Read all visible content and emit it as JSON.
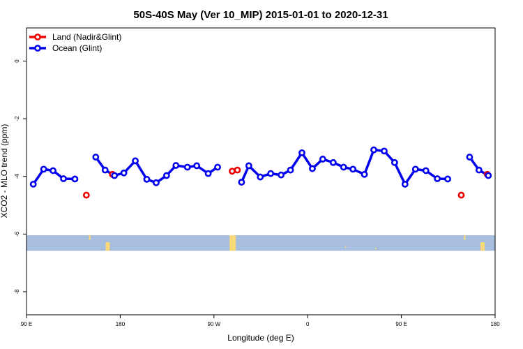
{
  "chart_data": {
    "type": "line",
    "title": "50S-40S May (Ver 10_MIP)   2015-01-01 to 2020-12-31",
    "xlabel": "Longitude (deg E)",
    "ylabel": "XCO2 - MLO trend (ppm)",
    "x_axis": {
      "unit": "degrees east, unwrapped (90 to 450)",
      "ticks": [
        {
          "value": 90,
          "label": "90 E"
        },
        {
          "value": 180,
          "label": "180"
        },
        {
          "value": 270,
          "label": "90 W"
        },
        {
          "value": 360,
          "label": "0"
        },
        {
          "value": 450,
          "label": "90 E"
        },
        {
          "value": 540,
          "label": "180"
        }
      ],
      "xlim": [
        90,
        540
      ]
    },
    "y_axis": {
      "ticks": [
        0,
        -2,
        -4,
        -6,
        -8
      ],
      "ylim": [
        -8.8,
        1.15
      ]
    },
    "grid": false,
    "legend_position": "top-left",
    "series": [
      {
        "name": "Land (Nadir&Glint)",
        "color": "#ee0000",
        "points": [
          {
            "x": 147.5,
            "y": -4.65
          },
          {
            "x": 172.5,
            "y": -3.93
          },
          {
            "x": 287.5,
            "y": -3.82
          },
          {
            "x": 292.5,
            "y": -3.78
          },
          {
            "x": 507.5,
            "y": -4.65
          },
          {
            "x": 532.5,
            "y": -3.93
          }
        ]
      },
      {
        "name": "Ocean (Glint)",
        "color": "#0000ee",
        "segments": [
          [
            {
              "x": 96.5,
              "y": -4.27
            },
            {
              "x": 106.5,
              "y": -3.75
            },
            {
              "x": 115.5,
              "y": -3.8
            },
            {
              "x": 125.5,
              "y": -4.08
            },
            {
              "x": 136.5,
              "y": -4.09
            }
          ],
          [
            {
              "x": 156.5,
              "y": -3.33
            },
            {
              "x": 165.5,
              "y": -3.78
            },
            {
              "x": 174.5,
              "y": -3.97
            },
            {
              "x": 183.5,
              "y": -3.88
            },
            {
              "x": 194.5,
              "y": -3.46
            },
            {
              "x": 205.5,
              "y": -4.1
            },
            {
              "x": 214.5,
              "y": -4.22
            },
            {
              "x": 224.5,
              "y": -3.97
            },
            {
              "x": 233.5,
              "y": -3.62
            },
            {
              "x": 244.5,
              "y": -3.68
            },
            {
              "x": 253.5,
              "y": -3.63
            },
            {
              "x": 264.5,
              "y": -3.9
            },
            {
              "x": 273.5,
              "y": -3.68
            }
          ],
          [
            {
              "x": 296.5,
              "y": -4.2
            },
            {
              "x": 303.5,
              "y": -3.63
            },
            {
              "x": 314.5,
              "y": -4.02
            },
            {
              "x": 324.5,
              "y": -3.9
            },
            {
              "x": 334.5,
              "y": -3.95
            },
            {
              "x": 343.5,
              "y": -3.78
            },
            {
              "x": 354.5,
              "y": -3.18
            },
            {
              "x": 364.5,
              "y": -3.73
            },
            {
              "x": 374.5,
              "y": -3.4
            },
            {
              "x": 384.5,
              "y": -3.52
            },
            {
              "x": 394.5,
              "y": -3.68
            },
            {
              "x": 403.5,
              "y": -3.75
            },
            {
              "x": 414.5,
              "y": -3.93
            },
            {
              "x": 423.5,
              "y": -3.08
            },
            {
              "x": 433.5,
              "y": -3.12
            },
            {
              "x": 443.5,
              "y": -3.52
            },
            {
              "x": 453.5,
              "y": -4.27
            },
            {
              "x": 463.5,
              "y": -3.75
            },
            {
              "x": 473.5,
              "y": -3.8
            },
            {
              "x": 484.5,
              "y": -4.08
            },
            {
              "x": 494.5,
              "y": -4.09
            }
          ],
          [
            {
              "x": 515.5,
              "y": -3.33
            },
            {
              "x": 524.5,
              "y": -3.78
            },
            {
              "x": 533.5,
              "y": -3.97
            }
          ]
        ]
      }
    ],
    "latitude_band": {
      "y_range": [
        -6.58,
        -6.04
      ],
      "ocean_color": "#a8bedf",
      "land_color": "#f7d97a"
    }
  }
}
